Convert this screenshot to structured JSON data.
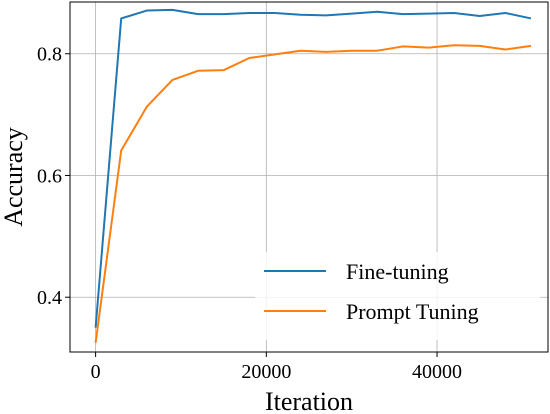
{
  "chart_data": {
    "type": "line",
    "xlabel": "Iteration",
    "ylabel": "Accuracy",
    "xlim": [
      -3000,
      53000
    ],
    "ylim": [
      0.31,
      0.885
    ],
    "xticks": [
      0,
      20000,
      40000
    ],
    "xtick_labels": [
      "0",
      "20000",
      "40000"
    ],
    "yticks": [
      0.4,
      0.6,
      0.8
    ],
    "ytick_labels": [
      "0.4",
      "0.6",
      "0.8"
    ],
    "grid": true,
    "legend_position": "lower-right",
    "x": [
      0,
      3000,
      6000,
      9000,
      12000,
      15000,
      18000,
      21000,
      24000,
      27000,
      30000,
      33000,
      36000,
      39000,
      42000,
      45000,
      48000,
      51000
    ],
    "series": [
      {
        "name": "Fine-tuning",
        "color": "#1f77b4",
        "values": [
          0.35,
          0.858,
          0.871,
          0.872,
          0.865,
          0.865,
          0.867,
          0.867,
          0.864,
          0.863,
          0.866,
          0.869,
          0.865,
          0.866,
          0.867,
          0.862,
          0.867,
          0.858
        ]
      },
      {
        "name": "Prompt Tuning",
        "color": "#ff7f0e",
        "values": [
          0.325,
          0.641,
          0.713,
          0.757,
          0.772,
          0.773,
          0.793,
          0.799,
          0.805,
          0.803,
          0.805,
          0.805,
          0.812,
          0.81,
          0.814,
          0.813,
          0.807,
          0.813
        ]
      }
    ]
  }
}
